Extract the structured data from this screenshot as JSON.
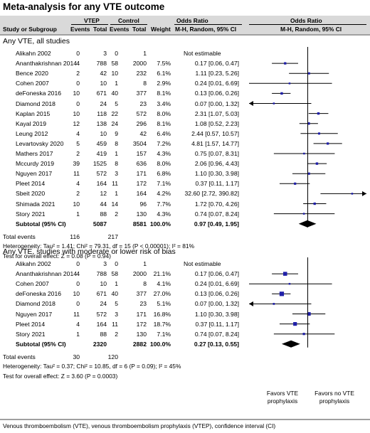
{
  "title": "Meta-analysis for any VTE outcome",
  "header": {
    "vtep": "VTEP",
    "control": "Control",
    "odds_ratio": "Odds Ratio",
    "odds_ratio_plot": "Odds Ratio",
    "study": "Study or Subgroup",
    "events1": "Events",
    "total1": "Total",
    "events2": "Events",
    "total2": "Total",
    "weight": "Weight",
    "method": "M-H, Random, 95% CI",
    "method_plot": "M-H, Random, 95% CI"
  },
  "chart_data": {
    "type": "forest",
    "scale": "log",
    "xlim": [
      0.01,
      100
    ],
    "reference_line": 1,
    "groups": [
      {
        "name": "Any VTE, all studies",
        "studies": [
          {
            "study": "Alikahn 2002",
            "e1": "0",
            "n1": "3",
            "e2": "0",
            "n2": "1",
            "weight": "",
            "or_text": "Not estimable",
            "or": null,
            "lo": null,
            "hi": null
          },
          {
            "study": "Ananthakrishnan 2014",
            "e1": "4",
            "n1": "788",
            "e2": "58",
            "n2": "2000",
            "weight": "7.5%",
            "or_text": "0.17 [0.06, 0.47]",
            "or": 0.17,
            "lo": 0.06,
            "hi": 0.47
          },
          {
            "study": "Bence 2020",
            "e1": "2",
            "n1": "42",
            "e2": "10",
            "n2": "232",
            "weight": "6.1%",
            "or_text": "1.11 [0.23, 5.26]",
            "or": 1.11,
            "lo": 0.23,
            "hi": 5.26
          },
          {
            "study": "Cohen 2007",
            "e1": "0",
            "n1": "10",
            "e2": "1",
            "n2": "8",
            "weight": "2.9%",
            "or_text": "0.24 [0.01, 6.69]",
            "or": 0.24,
            "lo": 0.01,
            "hi": 6.69
          },
          {
            "study": "deFoneska 2016",
            "e1": "10",
            "n1": "671",
            "e2": "40",
            "n2": "377",
            "weight": "8.1%",
            "or_text": "0.13 [0.06, 0.26]",
            "or": 0.13,
            "lo": 0.06,
            "hi": 0.26
          },
          {
            "study": "Diamond 2018",
            "e1": "0",
            "n1": "24",
            "e2": "5",
            "n2": "23",
            "weight": "3.4%",
            "or_text": "0.07 [0.00, 1.32]",
            "or": 0.07,
            "lo": 0.003,
            "hi": 1.32
          },
          {
            "study": "Kaplan 2015",
            "e1": "10",
            "n1": "118",
            "e2": "22",
            "n2": "572",
            "weight": "8.0%",
            "or_text": "2.31 [1.07, 5.03]",
            "or": 2.31,
            "lo": 1.07,
            "hi": 5.03
          },
          {
            "study": "Kayal 2019",
            "e1": "12",
            "n1": "138",
            "e2": "24",
            "n2": "296",
            "weight": "8.1%",
            "or_text": "1.08 [0.52, 2.23]",
            "or": 1.08,
            "lo": 0.52,
            "hi": 2.23
          },
          {
            "study": "Leung 2012",
            "e1": "4",
            "n1": "10",
            "e2": "9",
            "n2": "42",
            "weight": "6.4%",
            "or_text": "2.44 [0.57, 10.57]",
            "or": 2.44,
            "lo": 0.57,
            "hi": 10.57
          },
          {
            "study": "Levartovsky 2020",
            "e1": "5",
            "n1": "459",
            "e2": "8",
            "n2": "3504",
            "weight": "7.2%",
            "or_text": "4.81 [1.57, 14.77]",
            "or": 4.81,
            "lo": 1.57,
            "hi": 14.77
          },
          {
            "study": "Mathers 2017",
            "e1": "2",
            "n1": "419",
            "e2": "1",
            "n2": "157",
            "weight": "4.3%",
            "or_text": "0.75 [0.07, 8.31]",
            "or": 0.75,
            "lo": 0.07,
            "hi": 8.31
          },
          {
            "study": "Mccurdy 2019",
            "e1": "39",
            "n1": "1525",
            "e2": "8",
            "n2": "636",
            "weight": "8.0%",
            "or_text": "2.06 [0.96, 4.43]",
            "or": 2.06,
            "lo": 0.96,
            "hi": 4.43
          },
          {
            "study": "Nguyen 2017",
            "e1": "11",
            "n1": "572",
            "e2": "3",
            "n2": "171",
            "weight": "6.8%",
            "or_text": "1.10 [0.30, 3.98]",
            "or": 1.1,
            "lo": 0.3,
            "hi": 3.98
          },
          {
            "study": "Pleet 2014",
            "e1": "4",
            "n1": "164",
            "e2": "11",
            "n2": "172",
            "weight": "7.1%",
            "or_text": "0.37 [0.11, 1.17]",
            "or": 0.37,
            "lo": 0.11,
            "hi": 1.17
          },
          {
            "study": "Sbeit 2020",
            "e1": "2",
            "n1": "12",
            "e2": "1",
            "n2": "164",
            "weight": "4.2%",
            "or_text": "32.60 [2.72, 390.82]",
            "or": 32.6,
            "lo": 2.72,
            "hi": 390.82
          },
          {
            "study": "Shimada 2021",
            "e1": "10",
            "n1": "44",
            "e2": "14",
            "n2": "96",
            "weight": "7.7%",
            "or_text": "1.72 [0.70, 4.26]",
            "or": 1.72,
            "lo": 0.7,
            "hi": 4.26
          },
          {
            "study": "Story 2021",
            "e1": "1",
            "n1": "88",
            "e2": "2",
            "n2": "130",
            "weight": "4.3%",
            "or_text": "0.74 [0.07, 8.24]",
            "or": 0.74,
            "lo": 0.07,
            "hi": 8.24
          }
        ],
        "subtotal": {
          "label": "Subtotal (95% CI)",
          "n1": "5087",
          "n2": "8581",
          "weight": "100.0%",
          "or_text": "0.97 [0.49, 1.95]",
          "or": 0.97,
          "lo": 0.49,
          "hi": 1.95
        },
        "total_events": {
          "label": "Total events",
          "e1": "116",
          "e2": "217"
        },
        "heterogeneity": "Heterogeneity: Tau² = 1.41; Chi² = 79.31, df = 15 (P < 0.00001); I² = 81%",
        "overall_effect": "Test for overall effect: Z = 0.08 (P = 0.94)"
      },
      {
        "name": "Any VTE, studies with moderate or lower risk of bias",
        "studies": [
          {
            "study": "Alikahn 2002",
            "e1": "0",
            "n1": "3",
            "e2": "0",
            "n2": "1",
            "weight": "",
            "or_text": "Not estimable",
            "or": null,
            "lo": null,
            "hi": null
          },
          {
            "study": "Ananthakrishnan 2014",
            "e1": "4",
            "n1": "788",
            "e2": "58",
            "n2": "2000",
            "weight": "21.1%",
            "or_text": "0.17 [0.06, 0.47]",
            "or": 0.17,
            "lo": 0.06,
            "hi": 0.47
          },
          {
            "study": "Cohen 2007",
            "e1": "0",
            "n1": "10",
            "e2": "1",
            "n2": "8",
            "weight": "4.1%",
            "or_text": "0.24 [0.01, 6.69]",
            "or": 0.24,
            "lo": 0.01,
            "hi": 6.69
          },
          {
            "study": "deFoneska 2016",
            "e1": "10",
            "n1": "671",
            "e2": "40",
            "n2": "377",
            "weight": "27.0%",
            "or_text": "0.13 [0.06, 0.26]",
            "or": 0.13,
            "lo": 0.06,
            "hi": 0.26
          },
          {
            "study": "Diamond 2018",
            "e1": "0",
            "n1": "24",
            "e2": "5",
            "n2": "23",
            "weight": "5.1%",
            "or_text": "0.07 [0.00, 1.32]",
            "or": 0.07,
            "lo": 0.003,
            "hi": 1.32
          },
          {
            "study": "Nguyen 2017",
            "e1": "11",
            "n1": "572",
            "e2": "3",
            "n2": "171",
            "weight": "16.8%",
            "or_text": "1.10 [0.30, 3.98]",
            "or": 1.1,
            "lo": 0.3,
            "hi": 3.98
          },
          {
            "study": "Pleet 2014",
            "e1": "4",
            "n1": "164",
            "e2": "11",
            "n2": "172",
            "weight": "18.7%",
            "or_text": "0.37 [0.11, 1.17]",
            "or": 0.37,
            "lo": 0.11,
            "hi": 1.17
          },
          {
            "study": "Story 2021",
            "e1": "1",
            "n1": "88",
            "e2": "2",
            "n2": "130",
            "weight": "7.1%",
            "or_text": "0.74 [0.07, 8.24]",
            "or": 0.74,
            "lo": 0.07,
            "hi": 8.24
          }
        ],
        "subtotal": {
          "label": "Subtotal (95% CI)",
          "n1": "2320",
          "n2": "2882",
          "weight": "100.0%",
          "or_text": "0.27 [0.13, 0.55]",
          "or": 0.27,
          "lo": 0.13,
          "hi": 0.55
        },
        "total_events": {
          "label": "Total events",
          "e1": "30",
          "e2": "120"
        },
        "heterogeneity": "Heterogeneity: Tau² = 0.37; Chi² = 10.85, df = 6 (P = 0.09); I² = 45%",
        "overall_effect": "Test for overall effect: Z = 3.60 (P = 0.0003)"
      }
    ],
    "favors_left": "Favors VTE prophylaxis",
    "favors_right": "Favors no VTE prophylaxis",
    "colors": {
      "square": "#1f1fa8",
      "diamond": "#000000",
      "header_bg": "#d9d9d9"
    }
  },
  "footnote": "Venous thromboembolism (VTE), venous thromboembolism prophylaxis (VTEP), confidence interval (CI)"
}
